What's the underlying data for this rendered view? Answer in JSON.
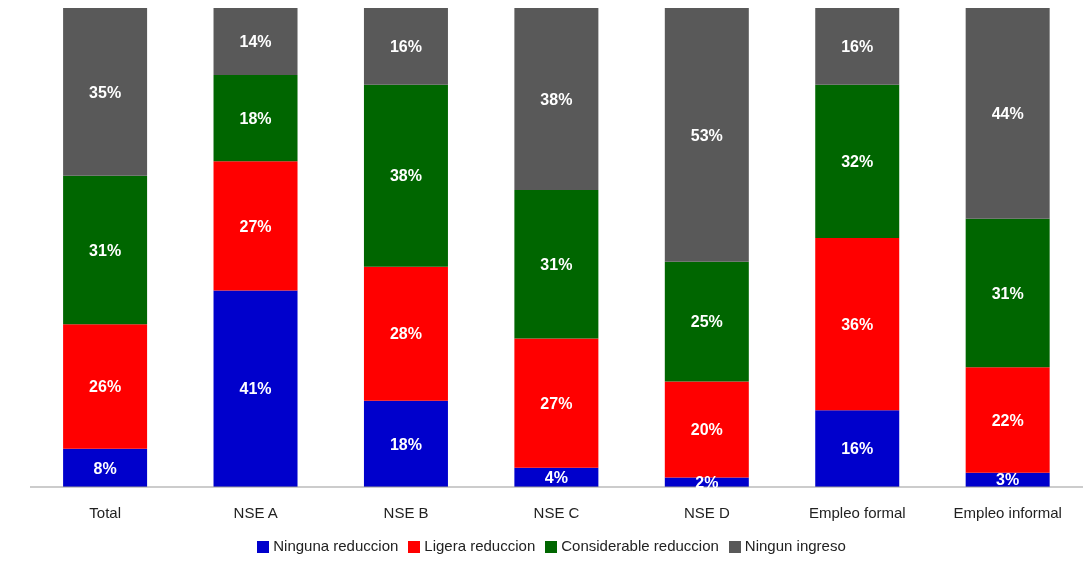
{
  "chart_data": {
    "type": "bar",
    "stacked": true,
    "categories": [
      "Total",
      "NSE A",
      "NSE B",
      "NSE C",
      "NSE D",
      "Empleo formal",
      "Empleo informal"
    ],
    "ylim": [
      0,
      100
    ],
    "tick_labels": "x",
    "grid": false,
    "legend": "bottom",
    "series": [
      {
        "name": "Ninguna reduccion",
        "color": "#0000cc",
        "values": [
          8,
          41,
          18,
          4,
          2,
          16,
          3
        ],
        "value_labels": [
          "8%",
          "41%",
          "18%",
          "4%",
          "2%",
          "16%",
          "3%"
        ]
      },
      {
        "name": "Ligera reduccion",
        "color": "#ff0000",
        "values": [
          26,
          27,
          28,
          27,
          20,
          36,
          22
        ],
        "value_labels": [
          "26%",
          "27%",
          "28%",
          "27%",
          "20%",
          "36%",
          "22%"
        ]
      },
      {
        "name": "Considerable reduccion",
        "color": "#006600",
        "values": [
          31,
          18,
          38,
          31,
          25,
          32,
          31
        ],
        "value_labels": [
          "31%",
          "18%",
          "38%",
          "31%",
          "25%",
          "32%",
          "31%"
        ]
      },
      {
        "name": "Ningun ingreso",
        "color": "#595959",
        "values": [
          35,
          14,
          16,
          38,
          53,
          16,
          44
        ],
        "value_labels": [
          "35%",
          "14%",
          "16%",
          "38%",
          "53%",
          "16%",
          "44%"
        ]
      }
    ]
  }
}
